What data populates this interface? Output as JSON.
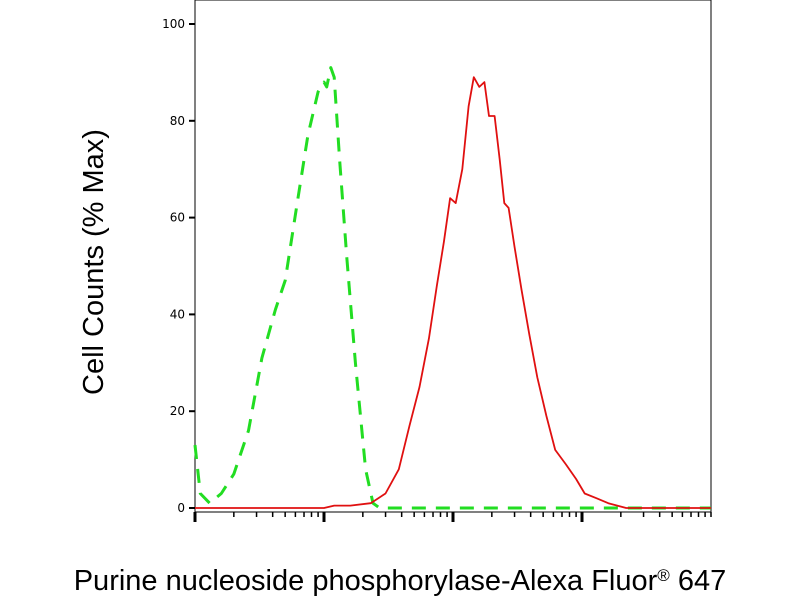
{
  "chart_data": {
    "type": "line",
    "title": "",
    "xlabel": "Purine nucleoside phosphorylase-Alexa Fluor",
    "xlabel_mark": "®",
    "xlabel_suffix": " 647",
    "ylabel": "Cell Counts (% Max)",
    "xscale": "log",
    "xlim": [
      0.1,
      1000
    ],
    "ylim": [
      0,
      100
    ],
    "ytick_values": [
      0,
      20,
      40,
      60,
      80,
      100
    ],
    "ytick_labels": [
      "0",
      "20",
      "40",
      "60",
      "80",
      "100"
    ],
    "grid": false,
    "legend": "none",
    "series": [
      {
        "color": "#22dd22",
        "dash": "dashed",
        "x": [
          0.1,
          0.11,
          0.13,
          0.16,
          0.2,
          0.26,
          0.33,
          0.42,
          0.5,
          0.62,
          0.75,
          0.9,
          1.0,
          1.05,
          1.13,
          1.2,
          1.32,
          1.5,
          1.75,
          2.1,
          2.4,
          2.7,
          3.2,
          4.0,
          5.0,
          7.0,
          10,
          20,
          50,
          100,
          1000
        ],
        "y": [
          13,
          3,
          1,
          3,
          7,
          16,
          31,
          41,
          47,
          63,
          77,
          86,
          88,
          87,
          91,
          89,
          72,
          52,
          30,
          8,
          1,
          0,
          0,
          0,
          0,
          0,
          0,
          0,
          0,
          0,
          0
        ]
      },
      {
        "color": "#e01010",
        "dash": "solid",
        "x": [
          0.1,
          1.0,
          1.2,
          1.6,
          2.3,
          3.0,
          3.8,
          4.6,
          5.5,
          6.5,
          7.5,
          8.5,
          9.5,
          10.5,
          11.8,
          13.2,
          14.5,
          16,
          17.5,
          19,
          21,
          23,
          25,
          27,
          30,
          34,
          39,
          45,
          53,
          62,
          75,
          90,
          105,
          130,
          160,
          220,
          350,
          1000
        ],
        "y": [
          0,
          0,
          0.5,
          0.5,
          1,
          3,
          8,
          17,
          25,
          35,
          46,
          55,
          64,
          63,
          70,
          83,
          89,
          87,
          88,
          81,
          81,
          72,
          63,
          62,
          54,
          45,
          36,
          27,
          19,
          12,
          9,
          6,
          3,
          2,
          1,
          0,
          0,
          0
        ]
      }
    ]
  }
}
